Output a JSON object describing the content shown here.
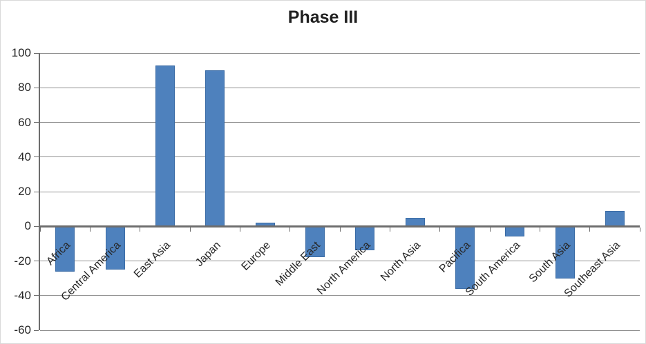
{
  "chart_data": {
    "type": "bar",
    "title": "Phase III",
    "categories": [
      "Africa",
      "Central America",
      "East Asia",
      "Japan",
      "Europe",
      "Middle East",
      "North America",
      "North Asia",
      "Pacifica",
      "South America",
      "South Asia",
      "Southeast Asia"
    ],
    "values": [
      -26,
      -25,
      93,
      90,
      2,
      -18,
      -14,
      5,
      -36,
      -6,
      -30,
      9
    ],
    "xlabel": "",
    "ylabel": "",
    "ylim": [
      -60,
      100
    ],
    "ytick_step": 20,
    "ytick_labels": [
      "100",
      "80",
      "60",
      "40",
      "20",
      "0",
      "-20",
      "-40",
      "-60"
    ],
    "grid": true,
    "legend": "none",
    "colors": {
      "bar_fill": "#4E81BD",
      "bar_border": "#3A6BA5",
      "gridline": "#8F8F8F",
      "axis_line": "#6D6D6D",
      "text": "#262626",
      "title_text": "#1F1F1F",
      "background": "#FFFFFF",
      "frame_border": "#D9D9D9"
    }
  }
}
